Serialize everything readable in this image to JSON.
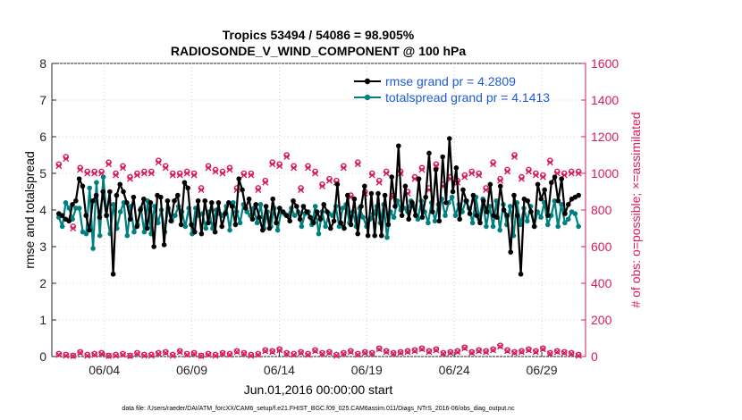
{
  "chart_data": {
    "type": "line",
    "title": "Tropics 53494 / 54086 = 98.905%",
    "subtitle": "RADIOSONDE_V_WIND_COMPONENT @ 100 hPa",
    "xlabel": "Jun.01,2016 00:00:00 start",
    "ylabel": "rmse and totalspread",
    "y2label": "# of obs: o=possible; ×=assimilated",
    "footnote": "data file: /Users/raeder/DAI/ATM_forcXX/CAM6_setup/f.e21.FHIST_BGC.f09_025.CAM6assim.011/Diags_NTrS_2016-06/obs_diag_output.nc",
    "xlim": [
      0,
      30.5
    ],
    "ylim": [
      0,
      8
    ],
    "y2lim": [
      0,
      1600
    ],
    "x_ticks": [
      3,
      8,
      13,
      18,
      23,
      28
    ],
    "x_tick_labels": [
      "06/04",
      "06/09",
      "06/14",
      "06/19",
      "06/24",
      "06/29"
    ],
    "y_ticks": [
      0,
      1,
      2,
      3,
      4,
      5,
      6,
      7,
      8
    ],
    "y2_ticks": [
      0,
      200,
      400,
      600,
      800,
      1000,
      1200,
      1400,
      1600
    ],
    "grid": true,
    "legend_position": "top-right",
    "colors": {
      "rmse": "#000000",
      "spread": "#008080",
      "obs": "#d81b60",
      "legend_text": "#1e5cd6",
      "axis_right": "#d81b60"
    },
    "series": [
      {
        "name": "rmse grand pr = 4.2809",
        "axis": "left",
        "values": [
          3.9,
          3.85,
          3.75,
          3.7,
          4.15,
          4.25,
          4.85,
          4.65,
          3.85,
          3.45,
          4.25,
          4.4,
          3.8,
          4.5,
          3.85,
          4.5,
          2.25,
          4.4,
          4.7,
          4.5,
          4.2,
          3.75,
          4.35,
          3.55,
          4.0,
          4.3,
          3.5,
          4.2,
          3.0,
          4.4,
          4.35,
          3.05,
          4.25,
          3.7,
          4.25,
          4.4,
          3.6,
          4.75,
          4.6,
          3.6,
          3.4,
          4.25,
          3.35,
          4.25,
          3.65,
          4.2,
          3.4,
          4.2,
          3.55,
          3.9,
          4.2,
          4.1,
          3.6,
          4.85,
          4.55,
          4.05,
          4.3,
          3.75,
          4.15,
          3.8,
          3.45,
          4.1,
          3.5,
          4.3,
          3.65,
          4.05,
          3.95,
          3.85,
          3.7,
          4.25,
          4.1,
          3.75,
          4.1,
          3.95,
          3.8,
          3.65,
          3.95,
          3.75,
          4.15,
          3.95,
          3.5,
          3.7,
          4.7,
          3.65,
          3.5,
          4.4,
          3.6,
          4.3,
          3.35,
          4.1,
          4.65,
          3.3,
          4.45,
          3.3,
          4.45,
          3.3,
          4.4,
          3.6,
          4.9,
          4.1,
          5.75,
          3.85,
          4.65,
          3.75,
          4.2,
          3.85,
          4.85,
          3.8,
          4.35,
          5.55,
          3.95,
          5.1,
          3.7,
          5.45,
          4.2,
          5.95,
          4.5,
          5.15,
          3.75,
          4.55,
          4.25,
          3.9,
          4.4,
          3.85,
          3.65,
          4.25,
          3.95,
          4.7,
          3.85,
          3.8,
          4.65,
          4.0,
          3.85,
          2.85,
          4.4,
          3.85,
          2.25,
          4.3,
          4.25,
          3.95,
          3.55,
          4.7,
          4.3,
          4.55,
          3.85,
          4.75,
          4.9,
          4.25,
          4.85,
          3.9,
          4.15,
          4.3,
          4.35,
          4.4
        ]
      },
      {
        "name": "totalspread grand pr = 4.1413",
        "axis": "left",
        "values": [
          3.8,
          3.55,
          4.2,
          4.05,
          3.75,
          4.05,
          4.05,
          3.4,
          3.35,
          4.6,
          2.95,
          4.75,
          3.3,
          4.9,
          3.85,
          3.35,
          4.15,
          3.5,
          3.95,
          4.2,
          3.3,
          4.1,
          3.4,
          3.6,
          4.05,
          3.4,
          4.25,
          3.35,
          4.1,
          3.65,
          4.0,
          3.4,
          4.05,
          3.7,
          3.85,
          4.1,
          3.95,
          3.55,
          4.05,
          3.35,
          4.05,
          3.85,
          3.9,
          3.5,
          3.95,
          3.5,
          4.0,
          3.9,
          3.85,
          4.1,
          3.45,
          4.2,
          3.95,
          3.65,
          4.15,
          3.95,
          3.85,
          4.05,
          3.65,
          4.15,
          3.5,
          3.95,
          3.55,
          4.05,
          3.45,
          3.95,
          3.9,
          3.85,
          4.05,
          3.85,
          3.95,
          3.55,
          3.9,
          3.95,
          3.6,
          4.1,
          3.35,
          3.95,
          3.55,
          3.9,
          3.85,
          4.1,
          3.55,
          4.05,
          4.15,
          3.65,
          3.95,
          3.55,
          4.05,
          3.8,
          3.55,
          3.75,
          3.9,
          4.1,
          3.65,
          4.15,
          3.25,
          3.95,
          3.8,
          4.25,
          4.0,
          4.05,
          3.95,
          4.25,
          4.1,
          3.75,
          4.25,
          3.95,
          3.65,
          4.2,
          3.7,
          4.15,
          4.3,
          3.85,
          4.2,
          4.35,
          3.85,
          4.15,
          3.95,
          4.25,
          4.05,
          3.65,
          4.35,
          3.75,
          4.3,
          3.55,
          4.1,
          3.55,
          4.25,
          3.45,
          4.15,
          3.6,
          4.1,
          3.3,
          4.2,
          3.6,
          4.05,
          3.7,
          4.1,
          3.55,
          3.95,
          3.8,
          4.2,
          3.6,
          3.85,
          4.25,
          3.55,
          4.15,
          3.65,
          3.75,
          3.95,
          3.9,
          3.55
        ]
      },
      {
        "name": "possible",
        "axis": "right",
        "marker": "o",
        "values": [
          1050,
          1090,
          710,
          1030,
          1010,
          1010,
          1010,
          1060,
          1000,
          1040,
          980,
          1000,
          1010,
          1010,
          1070,
          1040,
          1000,
          1000,
          1010,
          1000,
          920,
          1040,
          1020,
          1010,
          1030,
          920,
          1000,
          1000,
          920,
          960,
          1060,
          1050,
          1100,
          1040,
          920,
          1040,
          1010,
          940,
          970,
          960,
          1040,
          880,
          1060,
          900,
          1000,
          960,
          1010,
          880,
          1010,
          900,
          980,
          1030,
          920,
          1050,
          940,
          980,
          960,
          990,
          1010,
          1000,
          920,
          1060,
          970,
          1020,
          1100,
          980,
          1020,
          1000,
          990,
          1070,
          1010,
          1000,
          1010,
          1010
        ]
      },
      {
        "name": "assimilated",
        "axis": "right",
        "marker": "x",
        "values": [
          1040,
          1080,
          700,
          1020,
          1000,
          1000,
          1000,
          1050,
          990,
          1030,
          970,
          990,
          1000,
          1000,
          1060,
          1030,
          990,
          990,
          1000,
          990,
          910,
          1030,
          1010,
          1000,
          1020,
          910,
          990,
          990,
          910,
          950,
          1050,
          1040,
          1090,
          1030,
          910,
          1030,
          1000,
          930,
          960,
          950,
          1030,
          870,
          1050,
          890,
          990,
          950,
          1000,
          870,
          1000,
          890,
          970,
          1020,
          910,
          1040,
          930,
          970,
          950,
          980,
          1000,
          990,
          910,
          1050,
          960,
          1010,
          1090,
          970,
          1010,
          990,
          980,
          1060,
          1000,
          990,
          1000,
          1000
        ]
      },
      {
        "name": "possible_lower",
        "axis": "right",
        "marker": "o",
        "values": [
          15,
          10,
          5,
          25,
          10,
          15,
          20,
          5,
          10,
          15,
          5,
          20,
          10,
          10,
          20,
          25,
          10,
          30,
          15,
          20,
          5,
          15,
          10,
          20,
          15,
          30,
          20,
          10,
          15,
          35,
          30,
          40,
          20,
          15,
          25,
          15,
          35,
          20,
          25,
          10,
          20,
          30,
          15,
          25,
          20,
          45,
          30,
          20,
          25,
          30,
          35,
          45,
          30,
          40,
          20,
          25,
          30,
          50,
          25,
          35,
          30,
          40,
          60,
          35,
          25,
          30,
          40,
          30,
          45,
          20,
          30,
          25,
          20,
          10
        ]
      },
      {
        "name": "assimilated_lower",
        "axis": "right",
        "marker": "x",
        "values": [
          10,
          5,
          3,
          20,
          5,
          10,
          15,
          3,
          5,
          10,
          3,
          15,
          5,
          5,
          15,
          20,
          5,
          25,
          10,
          15,
          3,
          10,
          5,
          15,
          10,
          25,
          15,
          5,
          10,
          30,
          25,
          35,
          15,
          10,
          20,
          10,
          30,
          15,
          20,
          5,
          15,
          25,
          10,
          20,
          15,
          40,
          25,
          15,
          20,
          25,
          30,
          40,
          25,
          35,
          15,
          20,
          25,
          45,
          20,
          30,
          25,
          35,
          55,
          30,
          20,
          25,
          35,
          25,
          40,
          15,
          25,
          20,
          15,
          5
        ]
      }
    ]
  }
}
